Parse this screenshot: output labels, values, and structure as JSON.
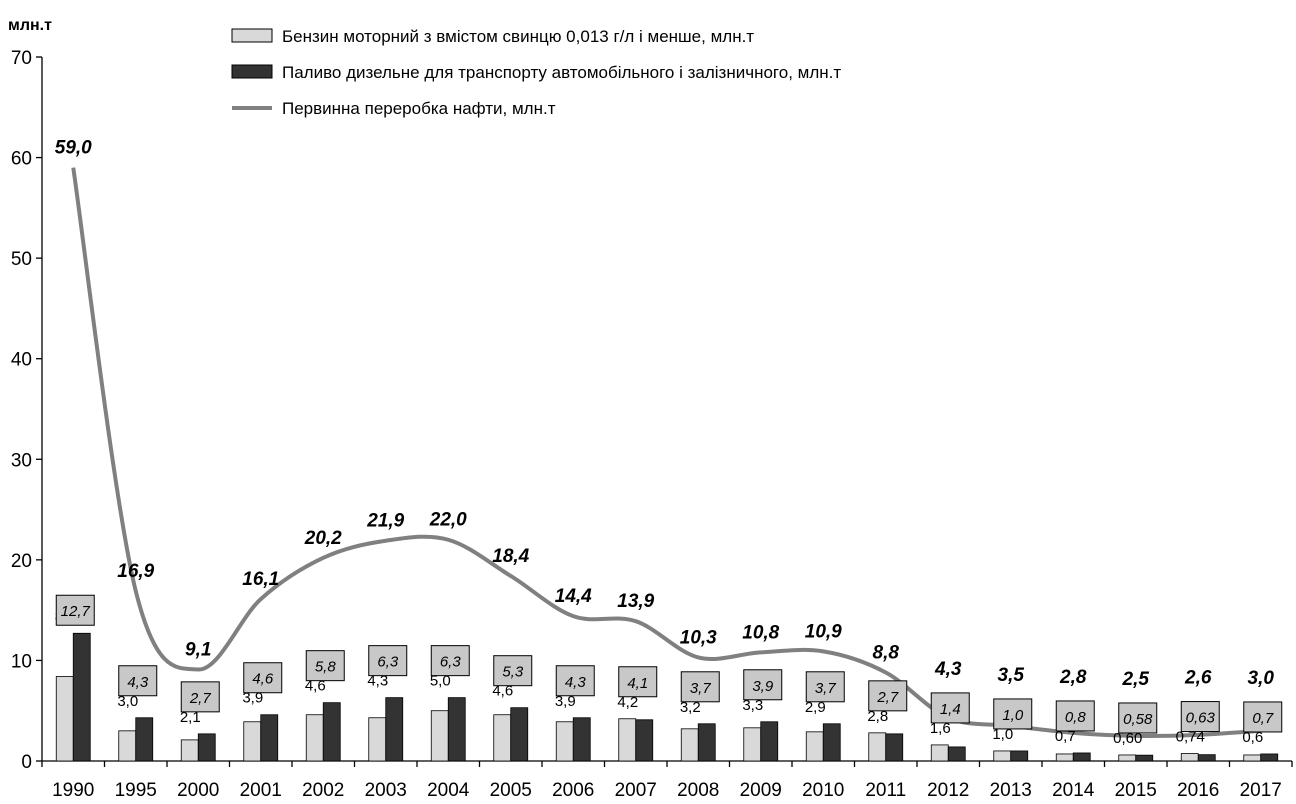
{
  "chart_data": {
    "type": "bar",
    "ylabel": "млн.т",
    "ylim": [
      0,
      70
    ],
    "yticks": [
      "0",
      "10",
      "20",
      "30",
      "40",
      "50",
      "60",
      "70"
    ],
    "grid": false,
    "legend_position": "top",
    "categories": [
      "1990",
      "1995",
      "2000",
      "2001",
      "2002",
      "2003",
      "2004",
      "2005",
      "2006",
      "2007",
      "2008",
      "2009",
      "2010",
      "2011",
      "2012",
      "2013",
      "2014",
      "2015",
      "2016",
      "2017"
    ],
    "series": [
      {
        "name": "Бензин моторний з вмістом свинцю 0,013 г/л і менше, млн.т",
        "type": "bar",
        "color": "#d9d9d9",
        "values": [
          8.4,
          3.0,
          2.1,
          3.9,
          4.6,
          4.3,
          5.0,
          4.6,
          3.9,
          4.2,
          3.2,
          3.3,
          2.9,
          2.8,
          1.6,
          1.0,
          0.7,
          0.6,
          0.74,
          0.6
        ],
        "labels": [
          "8,4",
          "3,0",
          "2,1",
          "3,9",
          "4,6",
          "4,3",
          "5,0",
          "4,6",
          "3,9",
          "4,2",
          "3,2",
          "3,3",
          "2,9",
          "2,8",
          "1,6",
          "1,0",
          "0,7",
          "0,60",
          "0,74",
          "0,6"
        ]
      },
      {
        "name": "Паливо дизельне для транспорту автомобільного і залізничного, млн.т",
        "type": "bar",
        "color": "#333333",
        "values": [
          12.7,
          4.3,
          2.7,
          4.6,
          5.8,
          6.3,
          6.3,
          5.3,
          4.3,
          4.1,
          3.7,
          3.9,
          3.7,
          2.7,
          1.4,
          1.0,
          0.8,
          0.58,
          0.63,
          0.7
        ],
        "labels": [
          "12,7",
          "4,3",
          "2,7",
          "4,6",
          "5,8",
          "6,3",
          "6,3",
          "5,3",
          "4,3",
          "4,1",
          "3,7",
          "3,9",
          "3,7",
          "2,7",
          "1,4",
          "1,0",
          "0,8",
          "0,58",
          "0,63",
          "0,7"
        ]
      },
      {
        "name": "Первинна переробка нафти, млн.т",
        "type": "line",
        "color": "#808080",
        "values": [
          59.0,
          16.9,
          9.1,
          16.1,
          20.2,
          21.9,
          22.0,
          18.4,
          14.4,
          13.9,
          10.3,
          10.8,
          10.9,
          8.8,
          4.3,
          3.5,
          2.8,
          2.5,
          2.6,
          3.0
        ],
        "labels": [
          "59,0",
          "16,9",
          "9,1",
          "16,1",
          "20,2",
          "21,9",
          "22,0",
          "18,4",
          "14,4",
          "13,9",
          "10,3",
          "10,8",
          "10,9",
          "8,8",
          "4,3",
          "3,5",
          "2,8",
          "2,5",
          "2,6",
          "3,0"
        ]
      }
    ]
  }
}
